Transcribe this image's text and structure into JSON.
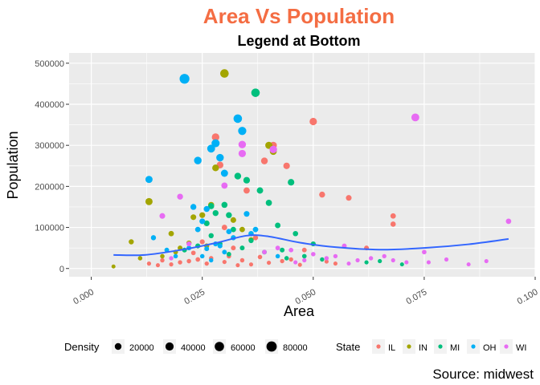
{
  "chart_data": {
    "type": "scatter",
    "title": "Area Vs Population",
    "subtitle": "Legend at Bottom",
    "xlabel": "Area",
    "ylabel": "Population",
    "caption": "Source: midwest",
    "xlim": [
      -0.005,
      0.1
    ],
    "ylim": [
      -20000,
      525000
    ],
    "x_ticks": [
      0.0,
      0.025,
      0.05,
      0.075,
      0.1
    ],
    "x_tick_labels": [
      "0.000",
      "0.025",
      "0.050",
      "0.075",
      "0.100"
    ],
    "y_ticks": [
      0,
      100000,
      200000,
      300000,
      400000,
      500000
    ],
    "y_tick_labels": [
      "0",
      "100000",
      "200000",
      "300000",
      "400000",
      "500000"
    ],
    "grid": true,
    "legend_position": "bottom",
    "legend_density": {
      "title": "Density",
      "values": [
        20000,
        40000,
        60000,
        80000
      ],
      "labels": [
        "20000",
        "40000",
        "60000",
        "80000"
      ]
    },
    "legend_state": {
      "title": "State",
      "entries": [
        "IL",
        "IN",
        "MI",
        "OH",
        "WI"
      ],
      "colors": [
        "#F8766D",
        "#A3A500",
        "#00BF7D",
        "#00B0F6",
        "#E76BF3"
      ]
    },
    "smooth": {
      "color": "#3366FF",
      "x": [
        0.005,
        0.012,
        0.02,
        0.028,
        0.035,
        0.04,
        0.047,
        0.055,
        0.065,
        0.075,
        0.085,
        0.094
      ],
      "y": [
        33000,
        33000,
        45000,
        62000,
        80000,
        78000,
        63000,
        52000,
        46000,
        50000,
        59000,
        72000
      ]
    },
    "series": [
      {
        "name": "IL",
        "x": [
          0.023,
          0.025,
          0.028,
          0.029,
          0.03,
          0.032,
          0.035,
          0.037,
          0.039,
          0.041,
          0.044,
          0.048,
          0.05,
          0.052,
          0.058,
          0.068,
          0.068,
          0.018,
          0.02,
          0.022,
          0.024,
          0.026,
          0.027,
          0.03,
          0.031,
          0.033,
          0.034,
          0.036,
          0.038,
          0.04,
          0.043,
          0.045,
          0.047,
          0.053,
          0.055,
          0.062,
          0.013,
          0.015,
          0.016
        ],
        "y": [
          38000,
          65000,
          320000,
          252000,
          100000,
          50000,
          190000,
          75000,
          262000,
          300000,
          250000,
          45000,
          358000,
          180000,
          172000,
          128000,
          108000,
          10000,
          15000,
          18000,
          22000,
          12000,
          25000,
          16000,
          30000,
          8000,
          20000,
          10000,
          28000,
          14000,
          18000,
          22000,
          9000,
          17000,
          12000,
          50000,
          12000,
          8000,
          20000
        ],
        "density": [
          3000,
          5000,
          30000,
          20000,
          8000,
          4000,
          15000,
          6000,
          20000,
          25000,
          18000,
          3500,
          28000,
          12000,
          10000,
          8000,
          7000,
          1500,
          2000,
          2500,
          3000,
          1800,
          2500,
          1600,
          2800,
          1200,
          2200,
          1300,
          2600,
          1500,
          1800,
          2000,
          1200,
          1500,
          1300,
          4000,
          1600,
          1200,
          2200
        ]
      },
      {
        "name": "IN",
        "x": [
          0.005,
          0.009,
          0.011,
          0.013,
          0.018,
          0.022,
          0.027,
          0.028,
          0.03,
          0.04,
          0.041,
          0.032,
          0.023,
          0.025,
          0.02,
          0.016,
          0.019,
          0.034,
          0.036,
          0.026
        ],
        "y": [
          5000,
          65000,
          25000,
          163000,
          85000,
          62000,
          155000,
          245000,
          475000,
          300000,
          285000,
          118000,
          125000,
          130000,
          50000,
          30000,
          40000,
          95000,
          70000,
          55000
        ],
        "density": [
          1000,
          6000,
          2500,
          25000,
          8000,
          6000,
          12000,
          20000,
          45000,
          25000,
          22000,
          10000,
          10000,
          11000,
          4000,
          2500,
          3500,
          8000,
          6000,
          5000
        ]
      },
      {
        "name": "MI",
        "x": [
          0.021,
          0.024,
          0.026,
          0.028,
          0.032,
          0.033,
          0.035,
          0.037,
          0.038,
          0.04,
          0.042,
          0.045,
          0.046,
          0.05,
          0.027,
          0.029,
          0.031,
          0.034,
          0.036,
          0.039,
          0.043,
          0.048,
          0.052,
          0.062,
          0.065,
          0.07,
          0.031,
          0.027,
          0.03,
          0.044
        ],
        "y": [
          45000,
          55000,
          110000,
          135000,
          95000,
          225000,
          215000,
          428000,
          190000,
          160000,
          105000,
          210000,
          85000,
          60000,
          80000,
          60000,
          35000,
          50000,
          68000,
          40000,
          45000,
          30000,
          22000,
          15000,
          18000,
          10000,
          130000,
          152000,
          155000,
          25000
        ],
        "density": [
          4000,
          5000,
          10000,
          12000,
          8000,
          20000,
          18000,
          45000,
          16000,
          14000,
          9000,
          18000,
          7000,
          5000,
          6000,
          5000,
          3000,
          4000,
          5500,
          3500,
          4000,
          2800,
          2000,
          1500,
          1600,
          1200,
          12000,
          13000,
          13000,
          2500
        ]
      },
      {
        "name": "OH",
        "x": [
          0.013,
          0.021,
          0.024,
          0.025,
          0.027,
          0.028,
          0.029,
          0.03,
          0.033,
          0.034,
          0.035,
          0.023,
          0.024,
          0.026,
          0.022,
          0.025,
          0.027,
          0.028,
          0.029,
          0.032,
          0.031,
          0.03,
          0.026,
          0.037,
          0.036,
          0.014,
          0.017,
          0.019,
          0.042
        ],
        "y": [
          217000,
          462000,
          263000,
          115000,
          292000,
          305000,
          270000,
          232000,
          365000,
          335000,
          133000,
          150000,
          95000,
          145000,
          50000,
          30000,
          20000,
          60000,
          55000,
          75000,
          90000,
          40000,
          48000,
          95000,
          85000,
          75000,
          45000,
          30000,
          30000
        ],
        "density": [
          25000,
          70000,
          30000,
          10000,
          35000,
          38000,
          30000,
          25000,
          45000,
          40000,
          10000,
          12000,
          8000,
          12000,
          4000,
          2500,
          2000,
          5000,
          4500,
          6000,
          7500,
          3500,
          4000,
          8000,
          7000,
          6000,
          3500,
          2500,
          2500
        ]
      },
      {
        "name": "WI",
        "x": [
          0.016,
          0.02,
          0.034,
          0.034,
          0.03,
          0.041,
          0.057,
          0.073,
          0.094,
          0.08,
          0.076,
          0.068,
          0.063,
          0.055,
          0.05,
          0.045,
          0.042,
          0.039,
          0.022,
          0.018,
          0.06,
          0.066,
          0.071,
          0.089,
          0.085,
          0.058,
          0.053,
          0.048,
          0.046,
          0.075
        ],
        "y": [
          128000,
          175000,
          302000,
          280000,
          202000,
          290000,
          55000,
          368000,
          115000,
          22000,
          15000,
          20000,
          25000,
          30000,
          35000,
          45000,
          50000,
          40000,
          60000,
          25000,
          20000,
          30000,
          15000,
          18000,
          10000,
          12000,
          25000,
          20000,
          15000,
          40000
        ],
        "density": [
          10000,
          12000,
          30000,
          28000,
          15000,
          30000,
          4000,
          35000,
          8000,
          1500,
          1200,
          1500,
          1800,
          2000,
          2500,
          3000,
          3500,
          3000,
          5000,
          2000,
          1500,
          2000,
          1200,
          1400,
          1100,
          1200,
          2000,
          1600,
          1300,
          3000
        ]
      }
    ]
  }
}
